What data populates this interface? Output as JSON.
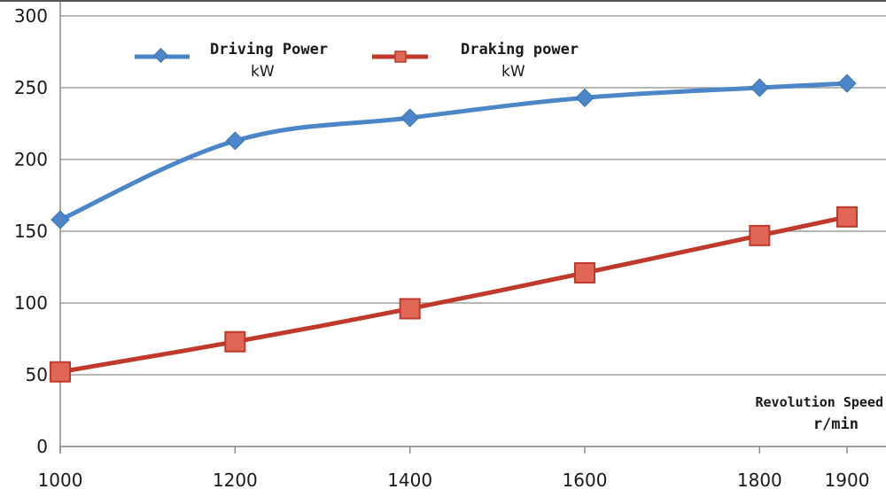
{
  "chart_data": {
    "type": "line",
    "x": [
      1000,
      1200,
      1400,
      1600,
      1800,
      1900
    ],
    "series": [
      {
        "name": "Driving Power",
        "unit": "kW",
        "values": [
          158,
          213,
          229,
          243,
          250,
          253
        ],
        "color": "#4a86c8",
        "marker": "diamond"
      },
      {
        "name": "Draking power",
        "unit": "kW",
        "values": [
          52,
          73,
          96,
          121,
          147,
          160
        ],
        "color": "#c0392b",
        "marker": "square"
      }
    ],
    "xlabel": "Revolution Speed",
    "xlabel_unit": "r/min",
    "ylim": [
      0,
      300
    ],
    "yticks": [
      0,
      50,
      100,
      150,
      200,
      250,
      300
    ],
    "xticks": [
      1000,
      1200,
      1400,
      1600,
      1800,
      1900
    ],
    "grid": "horizontal",
    "legend_position": "top"
  }
}
